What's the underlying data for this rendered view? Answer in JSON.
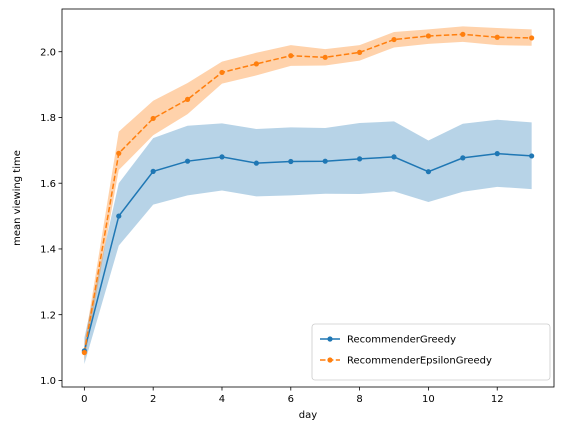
{
  "chart_data": {
    "type": "line",
    "xlabel": "day",
    "ylabel": "mean viewing time",
    "xlim": [
      -0.65,
      13.65
    ],
    "ylim": [
      0.98,
      2.13
    ],
    "xticks": [
      0,
      2,
      4,
      6,
      8,
      10,
      12
    ],
    "yticks": [
      1.0,
      1.2,
      1.4,
      1.6,
      1.8,
      2.0
    ],
    "ytick_labels": [
      "1.0",
      "1.2",
      "1.4",
      "1.6",
      "1.8",
      "2.0"
    ],
    "grid": false,
    "legend_position": "lower-right",
    "x": [
      0,
      1,
      2,
      3,
      4,
      5,
      6,
      7,
      8,
      9,
      10,
      11,
      12,
      13
    ],
    "series": [
      {
        "name": "RecommenderGreedy",
        "color": "#1f77b4",
        "linestyle": "solid",
        "marker": "circle",
        "values": [
          1.09,
          1.5,
          1.636,
          1.667,
          1.68,
          1.661,
          1.666,
          1.667,
          1.674,
          1.68,
          1.635,
          1.677,
          1.69,
          1.683
        ],
        "lower": [
          1.05,
          1.41,
          1.535,
          1.563,
          1.578,
          1.56,
          1.563,
          1.568,
          1.567,
          1.575,
          1.543,
          1.574,
          1.589,
          1.582
        ],
        "upper": [
          1.13,
          1.6,
          1.737,
          1.775,
          1.782,
          1.765,
          1.77,
          1.768,
          1.783,
          1.788,
          1.73,
          1.781,
          1.793,
          1.785
        ]
      },
      {
        "name": "RecommenderEpsilonGreedy",
        "color": "#ff7f0e",
        "linestyle": "dashed",
        "marker": "circle",
        "values": [
          1.085,
          1.691,
          1.797,
          1.855,
          1.937,
          1.963,
          1.988,
          1.983,
          1.998,
          2.037,
          2.048,
          2.053,
          2.044,
          2.042
        ],
        "lower": [
          1.06,
          1.64,
          1.746,
          1.81,
          1.903,
          1.928,
          1.957,
          1.958,
          1.973,
          2.013,
          2.024,
          2.03,
          2.02,
          2.018
        ],
        "upper": [
          1.11,
          1.757,
          1.851,
          1.905,
          1.97,
          1.997,
          2.02,
          2.008,
          2.02,
          2.06,
          2.068,
          2.077,
          2.072,
          2.068
        ]
      }
    ]
  }
}
